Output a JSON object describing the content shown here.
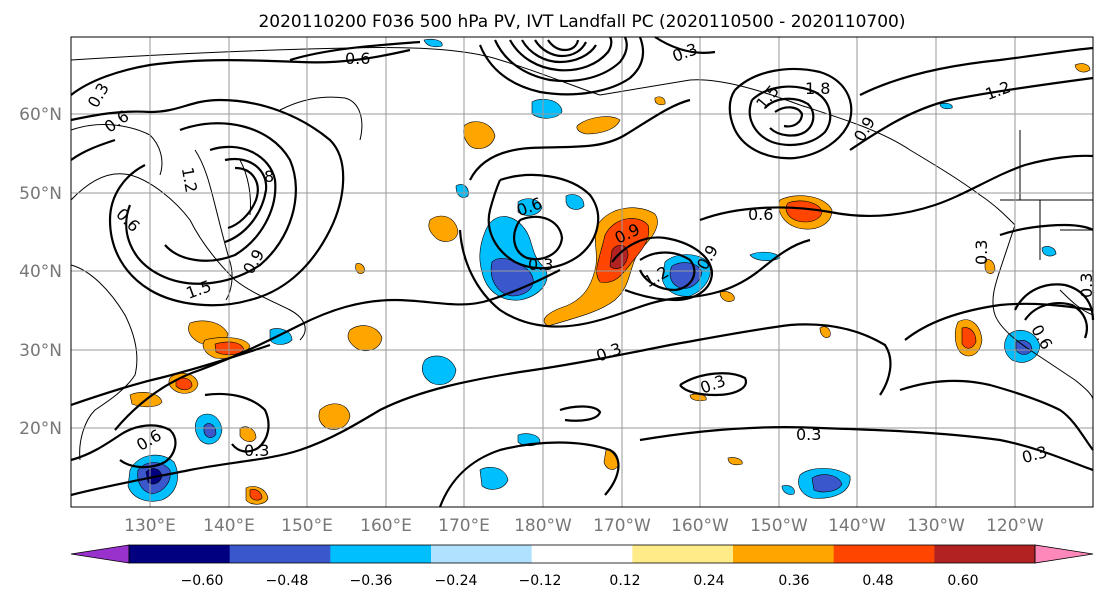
{
  "title": "2020110200 F036 500 hPa PV, IVT Landfall PC (2020110500 - 2020110700)",
  "map": {
    "lon_labels": [
      "130°E",
      "140°E",
      "150°E",
      "160°E",
      "170°E",
      "180°W",
      "170°W",
      "160°W",
      "150°W",
      "140°W",
      "130°W",
      "120°W"
    ],
    "lat_labels": [
      "20°N",
      "30°N",
      "40°N",
      "50°N",
      "60°N"
    ]
  },
  "colorbar": {
    "ticks": [
      "−0.60",
      "−0.48",
      "−0.36",
      "−0.24",
      "−0.12",
      "0.12",
      "0.24",
      "0.36",
      "0.48",
      "0.60"
    ],
    "colors": [
      "#9932cc",
      "#000080",
      "#3a58cc",
      "#00bfff",
      "#b0e2ff",
      "#ffffff",
      "#ffeb88",
      "#ffa500",
      "#ff4500",
      "#b22222",
      "#ff88bb"
    ]
  },
  "contour_labels": [
    {
      "text": "0.6"
    },
    {
      "text": "0.3"
    },
    {
      "text": "0.6"
    },
    {
      "text": "1.2"
    },
    {
      "text": "8"
    },
    {
      "text": "0.6"
    },
    {
      "text": "0.9"
    },
    {
      "text": "1.5"
    },
    {
      "text": "0.6"
    },
    {
      "text": "0.3"
    },
    {
      "text": "0.9"
    },
    {
      "text": "1.2"
    },
    {
      "text": "0.9"
    },
    {
      "text": "0.6"
    },
    {
      "text": "1.8"
    },
    {
      "text": "1.5"
    },
    {
      "text": "0.9"
    },
    {
      "text": "1.2"
    },
    {
      "text": "0.3"
    },
    {
      "text": "0.3"
    },
    {
      "text": "0.3"
    },
    {
      "text": "0.3"
    },
    {
      "text": "0.3"
    },
    {
      "text": "0.6"
    },
    {
      "text": "0.3"
    },
    {
      "text": "0.6"
    },
    {
      "text": "0.3"
    },
    {
      "text": "0.3"
    }
  ]
}
